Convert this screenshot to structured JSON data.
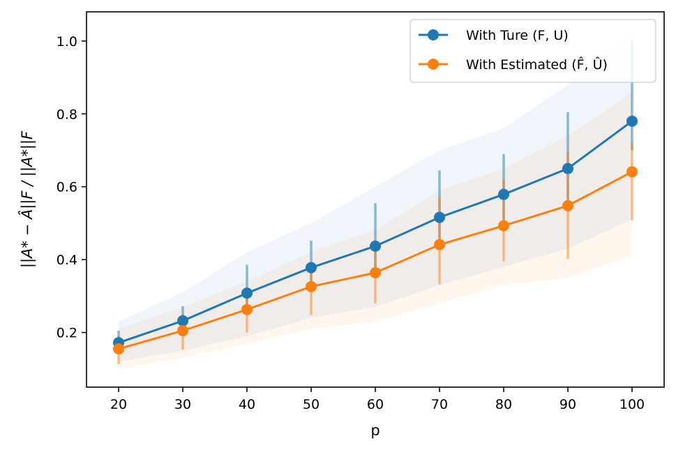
{
  "chart_data": {
    "type": "line",
    "title": "",
    "xlabel": "p",
    "ylabel": "||A* − Â||F / ||A*||F",
    "x": [
      20,
      30,
      40,
      50,
      60,
      70,
      80,
      90,
      100
    ],
    "xticks": [
      "20",
      "30",
      "40",
      "50",
      "60",
      "70",
      "80",
      "90",
      "100"
    ],
    "yticks": [
      "0.2",
      "0.4",
      "0.6",
      "0.8",
      "1.0"
    ],
    "xlim": [
      15,
      105
    ],
    "ylim": [
      0.05,
      1.08
    ],
    "legend_position": "top-right",
    "series": [
      {
        "name": "With Ture (F, U)",
        "color": "#1f77b4",
        "values": [
          0.172,
          0.232,
          0.308,
          0.378,
          0.437,
          0.516,
          0.579,
          0.65,
          0.78
        ],
        "err_low": [
          0.145,
          0.205,
          0.27,
          0.33,
          0.36,
          0.43,
          0.49,
          0.56,
          0.7
        ],
        "err_high": [
          0.205,
          0.272,
          0.386,
          0.452,
          0.555,
          0.645,
          0.69,
          0.805,
          1.0
        ],
        "band_low": [
          0.12,
          0.15,
          0.19,
          0.24,
          0.27,
          0.33,
          0.38,
          0.43,
          0.51
        ],
        "band_high": [
          0.23,
          0.31,
          0.42,
          0.5,
          0.6,
          0.7,
          0.76,
          0.88,
          1.03
        ]
      },
      {
        "name": "With Estimated (F̂, Û)",
        "color": "#ff7f0e",
        "values": [
          0.155,
          0.205,
          0.263,
          0.326,
          0.364,
          0.441,
          0.493,
          0.548,
          0.641
        ],
        "err_low": [
          0.113,
          0.153,
          0.2,
          0.248,
          0.28,
          0.332,
          0.395,
          0.402,
          0.508
        ],
        "err_high": [
          0.19,
          0.25,
          0.32,
          0.39,
          0.43,
          0.57,
          0.62,
          0.695,
          0.72
        ],
        "band_low": [
          0.1,
          0.13,
          0.17,
          0.21,
          0.23,
          0.28,
          0.33,
          0.35,
          0.41
        ],
        "band_high": [
          0.21,
          0.27,
          0.34,
          0.42,
          0.48,
          0.59,
          0.65,
          0.74,
          0.86
        ]
      }
    ]
  }
}
